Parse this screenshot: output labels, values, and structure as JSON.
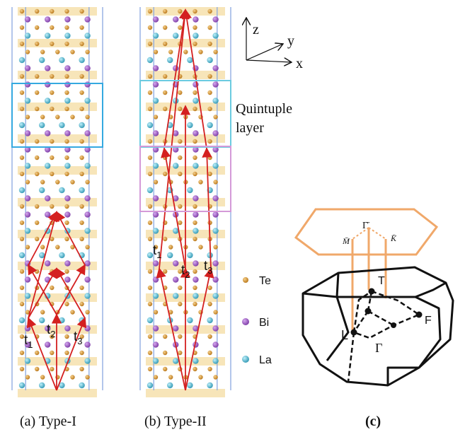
{
  "panels": {
    "a": {
      "caption": "(a) Type-I",
      "t1": "t",
      "t1_sub": "1",
      "t2": "t",
      "t2_sub": "2",
      "t3": "t",
      "t3_sub": "3"
    },
    "b": {
      "caption": "(b) Type-II",
      "t1": "t",
      "t1_sub": "1",
      "t2": "t",
      "t2_sub": "2",
      "t3": "t",
      "t3_sub": "3"
    },
    "c": {
      "caption": "(c)"
    }
  },
  "axes": {
    "z": "z",
    "y": "y",
    "x": "x"
  },
  "annotation": {
    "line1": "Quintuple",
    "line2": "layer"
  },
  "legend": [
    {
      "label": "Te",
      "color": "#c8882a"
    },
    {
      "label": "Bi",
      "color": "#9a55c0"
    },
    {
      "label": "La",
      "color": "#4fb8cf"
    }
  ],
  "bz": {
    "gamma_bar": "Γ̄",
    "m_bar": "M̄",
    "k_bar": "K̄",
    "T": "T",
    "L": "L",
    "Gamma": "Γ",
    "F": "F"
  },
  "colors": {
    "cell_line": "#8aa8e0",
    "arrow": "#d42020",
    "box_cyan": "#35a9e0",
    "box_teal": "#6ccbe0",
    "box_pink": "#d49ad8",
    "orange": "#f0a86a",
    "band": "#f5dfa8"
  }
}
